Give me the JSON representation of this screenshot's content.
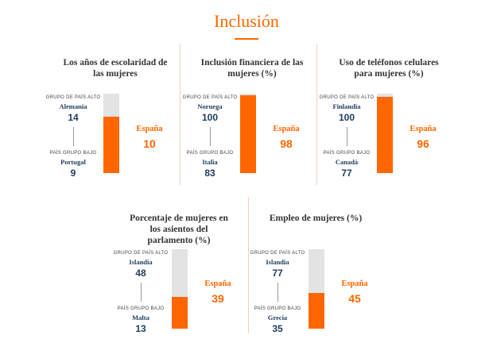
{
  "page": {
    "title": "Inclusión"
  },
  "labels": {
    "high": "GRUPO DE PAÍS ALTO",
    "low": "PAÍS GRUPO BAJO",
    "spain": "España"
  },
  "colors": {
    "accent": "#ff6600",
    "bar_bg": "#e3e3e3",
    "navy": "#1f3b5c"
  },
  "cards": [
    {
      "title_lines": [
        "Los años de escolaridad de",
        "las mujeres"
      ],
      "high_country": "Alemania",
      "high_value": "14",
      "low_country": "Portugal",
      "low_value": "9",
      "spain_value": "10",
      "fill_fraction": 0.714
    },
    {
      "title_lines": [
        "Inclusión financiera de las",
        "mujeres (%)"
      ],
      "high_country": "Noruega",
      "high_value": "100",
      "low_country": "Italia",
      "low_value": "83",
      "spain_value": "98",
      "fill_fraction": 0.98
    },
    {
      "title_lines": [
        "Uso de teléfonos celulares",
        "para mujeres (%)"
      ],
      "high_country": "Finlandia",
      "high_value": "100",
      "low_country": "Canadá",
      "low_value": "77",
      "spain_value": "96",
      "fill_fraction": 0.96
    },
    {
      "title_lines": [
        "Porcentaje de mujeres en",
        "los asientos del",
        "parlamento (%)"
      ],
      "high_country": "Islandia",
      "high_value": "48",
      "low_country": "Malta",
      "low_value": "13",
      "spain_value": "39",
      "fill_fraction": 0.4
    },
    {
      "title_lines": [
        "Empleo de mujeres (%)"
      ],
      "high_country": "Islandia",
      "high_value": "77",
      "low_country": "Grecia",
      "low_value": "35",
      "spain_value": "45",
      "fill_fraction": 0.45
    }
  ],
  "chart_data": [
    {
      "type": "bar",
      "title": "Los años de escolaridad de las mujeres",
      "categories": [
        "Alemania (alto)",
        "Portugal (bajo)",
        "España"
      ],
      "values": [
        14,
        9,
        10
      ]
    },
    {
      "type": "bar",
      "title": "Inclusión financiera de las mujeres (%)",
      "categories": [
        "Noruega (alto)",
        "Italia (bajo)",
        "España"
      ],
      "values": [
        100,
        83,
        98
      ]
    },
    {
      "type": "bar",
      "title": "Uso de teléfonos celulares para mujeres (%)",
      "categories": [
        "Finlandia (alto)",
        "Canadá (bajo)",
        "España"
      ],
      "values": [
        100,
        77,
        96
      ]
    },
    {
      "type": "bar",
      "title": "Porcentaje de mujeres en los asientos del parlamento (%)",
      "categories": [
        "Islandia (alto)",
        "Malta (bajo)",
        "España"
      ],
      "values": [
        48,
        13,
        39
      ]
    },
    {
      "type": "bar",
      "title": "Empleo de mujeres (%)",
      "categories": [
        "Islandia (alto)",
        "Grecia (bajo)",
        "España"
      ],
      "values": [
        77,
        35,
        45
      ]
    }
  ]
}
